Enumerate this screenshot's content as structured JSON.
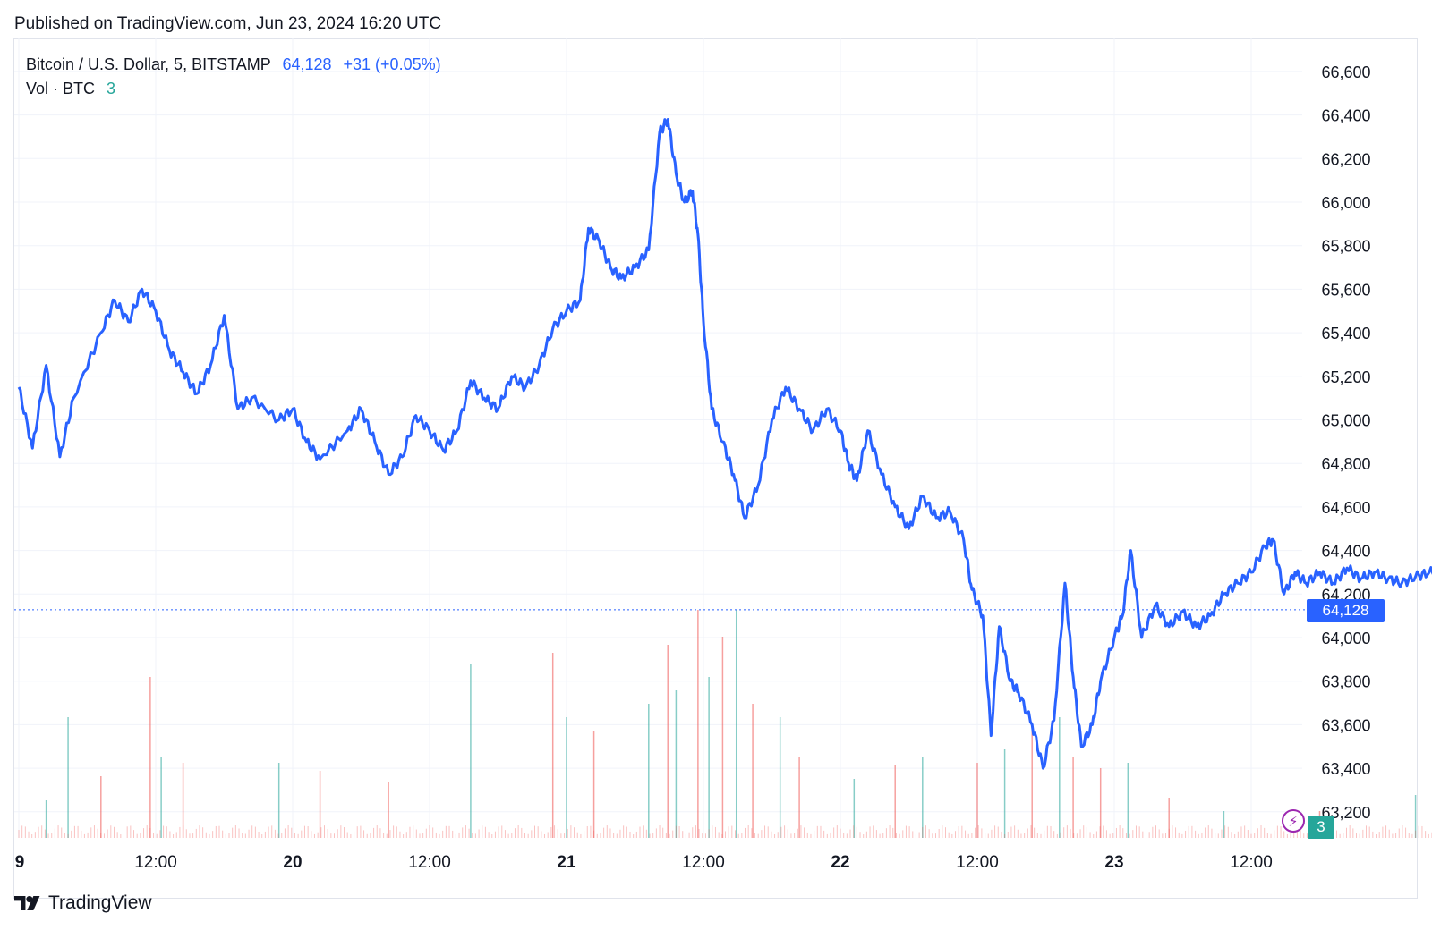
{
  "header": {
    "published": "Published on TradingView.com, Jun 23, 2024 16:20 UTC"
  },
  "legend": {
    "symbol": "Bitcoin / U.S. Dollar, 5, BITSTAMP",
    "price": "64,128",
    "change": "+31 (+0.05%)",
    "volume_label": "Vol · BTC",
    "volume_value": "3"
  },
  "price_tag": "64,128",
  "volume_tag": "3",
  "alert_icon": "lightning-icon",
  "footer": {
    "brand": "TradingView"
  },
  "colors": {
    "line": "#2962ff",
    "grid": "#f0f3fa",
    "vol_up": "#26a69a",
    "vol_down": "#ef5350",
    "text": "#131722"
  },
  "chart_data": {
    "type": "line",
    "title": "Bitcoin / U.S. Dollar, 5, BITSTAMP",
    "series": [
      {
        "name": "Bitcoin / U.S. Dollar",
        "points": [
          [
            0,
            65150
          ],
          [
            0.05,
            64870
          ],
          [
            0.1,
            65250
          ],
          [
            0.15,
            64830
          ],
          [
            0.2,
            65100
          ],
          [
            0.3,
            65400
          ],
          [
            0.35,
            65550
          ],
          [
            0.4,
            65450
          ],
          [
            0.45,
            65600
          ],
          [
            0.5,
            65500
          ],
          [
            0.55,
            65320
          ],
          [
            0.6,
            65220
          ],
          [
            0.65,
            65120
          ],
          [
            0.7,
            65250
          ],
          [
            0.75,
            65480
          ],
          [
            0.8,
            65050
          ],
          [
            0.85,
            65100
          ],
          [
            0.95,
            65000
          ],
          [
            1.0,
            65050
          ],
          [
            1.05,
            64900
          ],
          [
            1.1,
            64820
          ],
          [
            1.2,
            64950
          ],
          [
            1.25,
            65050
          ],
          [
            1.3,
            64900
          ],
          [
            1.35,
            64750
          ],
          [
            1.4,
            64830
          ],
          [
            1.45,
            65020
          ],
          [
            1.5,
            64950
          ],
          [
            1.55,
            64860
          ],
          [
            1.6,
            64950
          ],
          [
            1.65,
            65180
          ],
          [
            1.7,
            65100
          ],
          [
            1.75,
            65050
          ],
          [
            1.8,
            65200
          ],
          [
            1.85,
            65150
          ],
          [
            1.9,
            65250
          ],
          [
            1.95,
            65420
          ],
          [
            2.0,
            65500
          ],
          [
            2.05,
            65550
          ],
          [
            2.08,
            65880
          ],
          [
            2.12,
            65820
          ],
          [
            2.16,
            65700
          ],
          [
            2.2,
            65650
          ],
          [
            2.25,
            65700
          ],
          [
            2.3,
            65780
          ],
          [
            2.34,
            66320
          ],
          [
            2.37,
            66380
          ],
          [
            2.4,
            66130
          ],
          [
            2.43,
            66000
          ],
          [
            2.46,
            66050
          ],
          [
            2.48,
            65850
          ],
          [
            2.5,
            65450
          ],
          [
            2.53,
            65050
          ],
          [
            2.57,
            64900
          ],
          [
            2.61,
            64750
          ],
          [
            2.65,
            64550
          ],
          [
            2.7,
            64700
          ],
          [
            2.75,
            65000
          ],
          [
            2.8,
            65150
          ],
          [
            2.85,
            65050
          ],
          [
            2.9,
            64950
          ],
          [
            2.95,
            65050
          ],
          [
            3.0,
            64950
          ],
          [
            3.03,
            64800
          ],
          [
            3.06,
            64720
          ],
          [
            3.1,
            64950
          ],
          [
            3.15,
            64750
          ],
          [
            3.2,
            64600
          ],
          [
            3.25,
            64500
          ],
          [
            3.3,
            64650
          ],
          [
            3.35,
            64550
          ],
          [
            3.4,
            64580
          ],
          [
            3.45,
            64450
          ],
          [
            3.48,
            64220
          ],
          [
            3.52,
            64100
          ],
          [
            3.55,
            63550
          ],
          [
            3.58,
            64050
          ],
          [
            3.62,
            63800
          ],
          [
            3.65,
            63750
          ],
          [
            3.7,
            63600
          ],
          [
            3.74,
            63400
          ],
          [
            3.78,
            63620
          ],
          [
            3.82,
            64250
          ],
          [
            3.85,
            63820
          ],
          [
            3.88,
            63500
          ],
          [
            3.92,
            63600
          ],
          [
            3.95,
            63800
          ],
          [
            4.0,
            64000
          ],
          [
            4.03,
            64100
          ],
          [
            4.06,
            64400
          ],
          [
            4.1,
            64000
          ],
          [
            4.15,
            64150
          ],
          [
            4.2,
            64050
          ],
          [
            4.25,
            64120
          ],
          [
            4.3,
            64050
          ],
          [
            4.35,
            64100
          ],
          [
            4.4,
            64200
          ],
          [
            4.45,
            64250
          ],
          [
            4.5,
            64300
          ],
          [
            4.55,
            64420
          ],
          [
            4.58,
            64450
          ],
          [
            4.62,
            64200
          ],
          [
            4.66,
            64300
          ],
          [
            4.7,
            64250
          ],
          [
            4.75,
            64300
          ],
          [
            4.8,
            64250
          ],
          [
            4.85,
            64320
          ],
          [
            4.9,
            64270
          ],
          [
            4.95,
            64300
          ],
          [
            5.0,
            64270
          ],
          [
            5.05,
            64250
          ],
          [
            5.1,
            64280
          ],
          [
            5.15,
            64300
          ],
          [
            5.2,
            64300
          ],
          [
            5.25,
            64480
          ],
          [
            5.3,
            64420
          ],
          [
            5.35,
            64450
          ],
          [
            5.4,
            64380
          ],
          [
            5.45,
            64370
          ],
          [
            5.5,
            64380
          ],
          [
            5.55,
            64370
          ],
          [
            5.6,
            64380
          ],
          [
            5.65,
            64300
          ],
          [
            5.7,
            64280
          ],
          [
            5.75,
            64350
          ],
          [
            5.78,
            64250
          ],
          [
            5.82,
            64120
          ],
          [
            5.85,
            64080
          ],
          [
            5.88,
            64128
          ]
        ]
      }
    ],
    "volume": [
      [
        0.1,
        14,
        "up"
      ],
      [
        0.18,
        45,
        "up"
      ],
      [
        0.3,
        23,
        "down"
      ],
      [
        0.48,
        60,
        "down"
      ],
      [
        0.52,
        30,
        "up"
      ],
      [
        0.6,
        28,
        "down"
      ],
      [
        0.95,
        28,
        "up"
      ],
      [
        1.1,
        25,
        "down"
      ],
      [
        1.35,
        21,
        "down"
      ],
      [
        1.65,
        65,
        "up"
      ],
      [
        1.95,
        69,
        "down"
      ],
      [
        2.0,
        45,
        "up"
      ],
      [
        2.1,
        40,
        "down"
      ],
      [
        2.3,
        50,
        "up"
      ],
      [
        2.37,
        72,
        "down"
      ],
      [
        2.4,
        55,
        "up"
      ],
      [
        2.48,
        85,
        "down"
      ],
      [
        2.52,
        60,
        "up"
      ],
      [
        2.57,
        75,
        "down"
      ],
      [
        2.62,
        85,
        "up"
      ],
      [
        2.68,
        50,
        "down"
      ],
      [
        2.78,
        45,
        "up"
      ],
      [
        2.85,
        30,
        "down"
      ],
      [
        3.05,
        22,
        "up"
      ],
      [
        3.2,
        27,
        "down"
      ],
      [
        3.3,
        30,
        "up"
      ],
      [
        3.5,
        28,
        "down"
      ],
      [
        3.6,
        33,
        "up"
      ],
      [
        3.7,
        40,
        "down"
      ],
      [
        3.8,
        45,
        "up"
      ],
      [
        3.85,
        30,
        "down"
      ],
      [
        3.95,
        26,
        "down"
      ],
      [
        4.05,
        28,
        "up"
      ],
      [
        4.2,
        15,
        "down"
      ],
      [
        4.4,
        10,
        "up"
      ],
      [
        4.75,
        10,
        "down"
      ],
      [
        5.1,
        16,
        "up"
      ],
      [
        5.25,
        14,
        "down"
      ],
      [
        5.4,
        55,
        "up"
      ],
      [
        5.58,
        15,
        "down"
      ],
      [
        5.88,
        46,
        "up"
      ]
    ],
    "x_tick_labels": [
      "9",
      "12:00",
      "20",
      "12:00",
      "21",
      "12:00",
      "22",
      "12:00",
      "23",
      "12:00"
    ],
    "y_tick_labels": [
      "66,600",
      "66,400",
      "66,200",
      "66,000",
      "65,800",
      "65,600",
      "65,400",
      "65,200",
      "65,000",
      "64,800",
      "64,600",
      "64,400",
      "64,200",
      "64,000",
      "63,800",
      "63,600",
      "63,400",
      "63,200"
    ],
    "ylim": [
      63150,
      66650
    ],
    "last_value": 64128
  }
}
